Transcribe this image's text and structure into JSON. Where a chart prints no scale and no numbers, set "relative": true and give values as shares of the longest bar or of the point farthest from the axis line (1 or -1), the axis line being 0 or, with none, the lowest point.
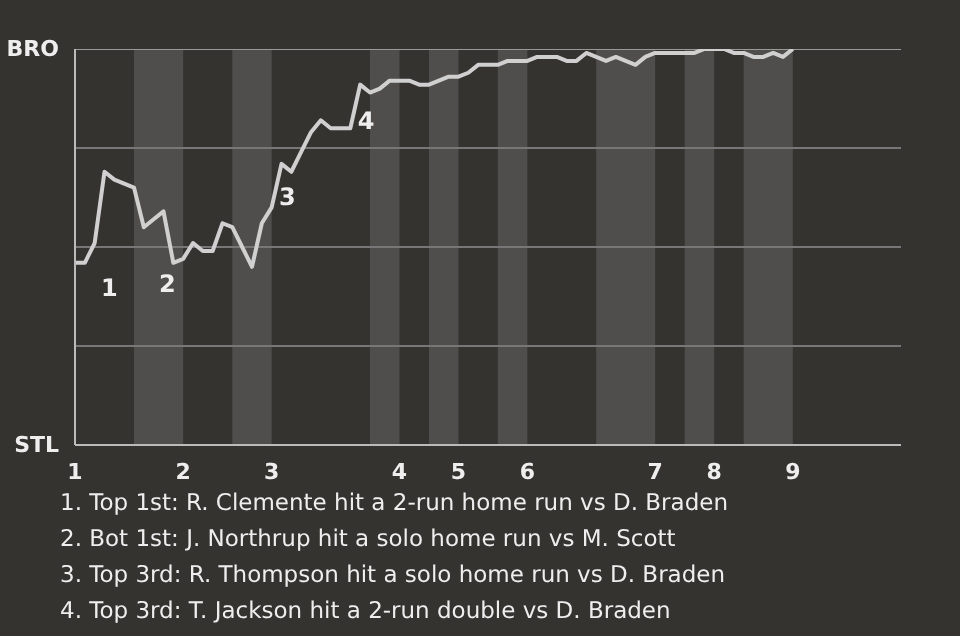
{
  "chart_data": {
    "type": "line",
    "relative": true,
    "categories": [
      "1",
      null,
      null,
      null,
      null,
      null,
      null,
      null,
      null,
      null,
      null,
      "2",
      null,
      null,
      null,
      null,
      null,
      null,
      null,
      null,
      "3",
      null,
      null,
      null,
      null,
      null,
      null,
      null,
      null,
      null,
      null,
      null,
      null,
      "4",
      null,
      null,
      null,
      null,
      null,
      "5",
      null,
      null,
      null,
      null,
      null,
      null,
      "6",
      null,
      null,
      null,
      null,
      null,
      null,
      null,
      null,
      null,
      null,
      null,
      null,
      "7",
      null,
      null,
      null,
      null,
      null,
      "8",
      null,
      null,
      null,
      null,
      null,
      null,
      null,
      "9",
      null,
      null,
      null,
      null,
      null,
      null,
      null,
      null,
      null,
      null,
      null
    ],
    "series": [
      {
        "color": "#d0d0d0",
        "values": [
          0.46,
          0.46,
          0.51,
          0.69,
          0.67,
          0.66,
          0.65,
          0.55,
          0.57,
          0.59,
          0.46,
          0.47,
          0.51,
          0.49,
          0.49,
          0.56,
          0.55,
          0.5,
          0.45,
          0.56,
          0.6,
          0.71,
          0.69,
          0.74,
          0.79,
          0.82,
          0.8,
          0.8,
          0.8,
          0.91,
          0.89,
          0.9,
          0.92,
          0.92,
          0.92,
          0.91,
          0.91,
          0.92,
          0.93,
          0.93,
          0.94,
          0.96,
          0.96,
          0.96,
          0.97,
          0.97,
          0.97,
          0.98,
          0.98,
          0.98,
          0.97,
          0.97,
          0.99,
          0.98,
          0.97,
          0.98,
          0.97,
          0.96,
          0.98,
          0.99,
          0.99,
          0.99,
          0.99,
          0.99,
          1,
          1,
          1,
          0.99,
          0.99,
          0.98,
          0.98,
          0.99,
          0.98,
          1,
          null,
          null,
          null,
          null,
          null,
          null,
          null,
          null,
          null,
          null,
          null
        ]
      }
    ],
    "grid": false,
    "marker": "none",
    "line_style": "solid",
    "ref_lines": [
      {
        "axis": "y",
        "value": 0.25,
        "color": "#777777"
      },
      {
        "axis": "y",
        "value": 0.5,
        "color": "#777777"
      },
      {
        "axis": "y",
        "value": 0.75,
        "color": "#777777"
      },
      {
        "axis": "y",
        "value": 1,
        "color": "#999999"
      }
    ],
    "annotations": [
      "BRO",
      "STL",
      "1",
      "2",
      "3",
      "4",
      "1. Top 1st: R. Clemente hit a 2-run home run vs D. Braden",
      "2. Bot 1st: J. Northrup hit a solo home run vs M. Scott",
      "3. Top 3rd: R. Thompson hit a solo home run vs D. Braden",
      "4. Top 3rd: T. Jackson hit a 2-run double vs D. Braden"
    ]
  }
}
